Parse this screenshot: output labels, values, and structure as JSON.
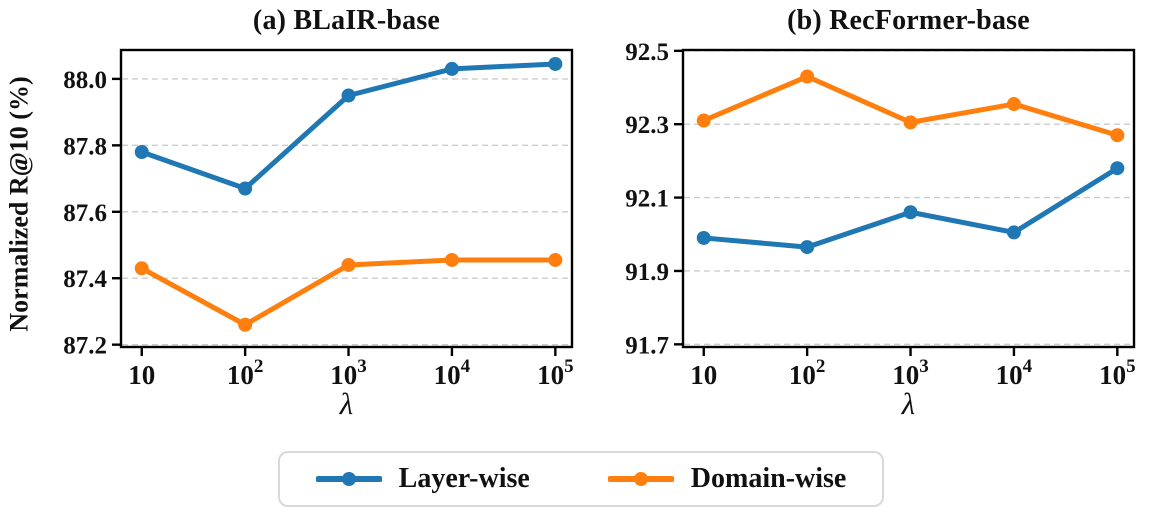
{
  "figure": {
    "ylabel": "Normalized R@10 (%)",
    "xlabel": "λ",
    "colors": {
      "layer_wise": "#1f77b4",
      "domain_wise": "#ff7f0e",
      "grid": "#cccccc",
      "axis": "#000000",
      "legend_border": "#d9d9d9",
      "background": "#ffffff"
    },
    "legend": {
      "position": "bottom-center",
      "items": [
        {
          "label": "Layer-wise",
          "color": "#1f77b4"
        },
        {
          "label": "Domain-wise",
          "color": "#ff7f0e"
        }
      ]
    }
  },
  "chart_data": [
    {
      "type": "line",
      "title": "(a) BLaIR-base",
      "xlabel": "λ",
      "ylabel": "Normalized R@10 (%)",
      "x_scale": "log",
      "x_values": [
        10,
        100,
        1000,
        10000,
        100000
      ],
      "x_tick_labels": [
        "10",
        "10^2",
        "10^3",
        "10^4",
        "10^5"
      ],
      "yticks": [
        "87.2",
        "87.4",
        "87.6",
        "87.8",
        "88.0"
      ],
      "ylim": [
        87.19,
        88.09
      ],
      "grid": "horizontal-dashed",
      "series": [
        {
          "name": "Layer-wise",
          "color": "#1f77b4",
          "values": [
            87.78,
            87.67,
            87.95,
            88.03,
            88.045
          ]
        },
        {
          "name": "Domain-wise",
          "color": "#ff7f0e",
          "values": [
            87.43,
            87.26,
            87.44,
            87.455,
            87.455
          ]
        }
      ]
    },
    {
      "type": "line",
      "title": "(b) RecFormer-base",
      "xlabel": "λ",
      "ylabel": "Normalized R@10 (%)",
      "x_scale": "log",
      "x_values": [
        10,
        100,
        1000,
        10000,
        100000
      ],
      "x_tick_labels": [
        "10",
        "10^2",
        "10^3",
        "10^4",
        "10^5"
      ],
      "yticks": [
        "91.7",
        "91.9",
        "92.1",
        "92.3",
        "92.5"
      ],
      "ylim": [
        91.69,
        92.505
      ],
      "grid": "horizontal-dashed",
      "series": [
        {
          "name": "Layer-wise",
          "color": "#1f77b4",
          "values": [
            91.99,
            91.965,
            92.06,
            92.005,
            92.18
          ]
        },
        {
          "name": "Domain-wise",
          "color": "#ff7f0e",
          "values": [
            92.31,
            92.43,
            92.305,
            92.355,
            92.27
          ]
        }
      ]
    }
  ]
}
